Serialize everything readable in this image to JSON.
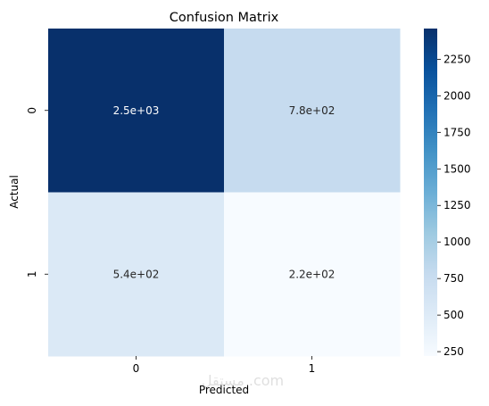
{
  "chart_data": {
    "type": "heatmap",
    "title": "Confusion Matrix",
    "xlabel": "Predicted",
    "ylabel": "Actual",
    "x_categories": [
      "0",
      "1"
    ],
    "y_categories": [
      "0",
      "1"
    ],
    "values": [
      [
        2460,
        780
      ],
      [
        540,
        220
      ]
    ],
    "annotations": [
      [
        "2.5e+03",
        "7.8e+02"
      ],
      [
        "5.4e+02",
        "2.2e+02"
      ]
    ],
    "colorbar": {
      "range": [
        220,
        2460
      ],
      "ticks": [
        250,
        500,
        750,
        1000,
        1250,
        1500,
        1750,
        2000,
        2250
      ],
      "colormap": "Blues",
      "low_color": "#f7fbff",
      "high_color": "#08306b"
    },
    "watermark": "مستقل .com"
  }
}
